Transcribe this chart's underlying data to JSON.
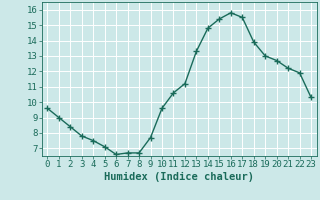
{
  "x": [
    0,
    1,
    2,
    3,
    4,
    5,
    6,
    7,
    8,
    9,
    10,
    11,
    12,
    13,
    14,
    15,
    16,
    17,
    18,
    19,
    20,
    21,
    22,
    23
  ],
  "y": [
    9.6,
    9.0,
    8.4,
    7.8,
    7.5,
    7.1,
    6.6,
    6.7,
    6.7,
    7.7,
    9.6,
    10.6,
    11.2,
    13.3,
    14.8,
    15.4,
    15.8,
    15.5,
    13.9,
    13.0,
    12.7,
    12.2,
    11.9,
    10.3
  ],
  "line_color": "#1a6b5a",
  "marker": "+",
  "marker_size": 4,
  "bg_color": "#cce8e8",
  "grid_color": "#ffffff",
  "xlabel": "Humidex (Indice chaleur)",
  "ylim": [
    6.5,
    16.5
  ],
  "xlim": [
    -0.5,
    23.5
  ],
  "yticks": [
    7,
    8,
    9,
    10,
    11,
    12,
    13,
    14,
    15,
    16
  ],
  "xticks": [
    0,
    1,
    2,
    3,
    4,
    5,
    6,
    7,
    8,
    9,
    10,
    11,
    12,
    13,
    14,
    15,
    16,
    17,
    18,
    19,
    20,
    21,
    22,
    23
  ],
  "tick_label_color": "#1a6b5a",
  "xlabel_fontsize": 7.5,
  "tick_fontsize": 6.5,
  "line_width": 1.0
}
